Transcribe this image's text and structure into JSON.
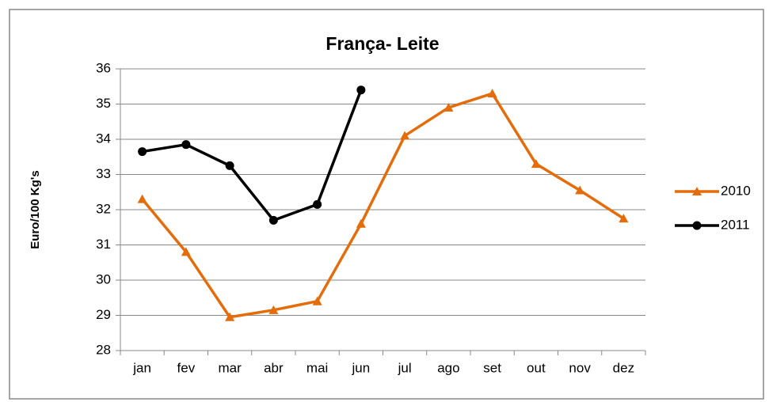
{
  "chart_data": {
    "type": "line",
    "title": "França- Leite",
    "y_label": "Euro/100 Kg's",
    "categories": [
      "jan",
      "fev",
      "mar",
      "abr",
      "mai",
      "jun",
      "jul",
      "ago",
      "set",
      "out",
      "nov",
      "dez"
    ],
    "series": [
      {
        "name": "2010",
        "color": "#e46c0a",
        "marker": "triangle",
        "values": [
          32.3,
          30.8,
          28.95,
          29.15,
          29.4,
          31.6,
          34.1,
          34.9,
          35.3,
          33.3,
          32.55,
          31.75
        ]
      },
      {
        "name": "2011",
        "color": "#000000",
        "marker": "circle",
        "values": [
          33.65,
          33.85,
          33.25,
          31.7,
          32.15,
          35.4,
          null,
          null,
          null,
          null,
          null,
          null
        ]
      }
    ],
    "ylim": [
      28,
      36
    ],
    "yticks": [
      28,
      29,
      30,
      31,
      32,
      33,
      34,
      35,
      36
    ],
    "grid": true,
    "legend": "right"
  }
}
